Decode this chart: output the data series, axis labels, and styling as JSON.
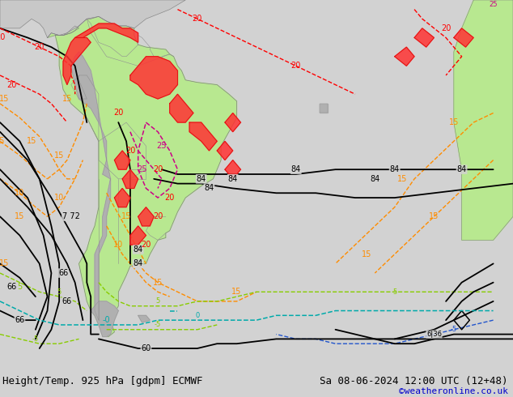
{
  "title_left": "Height/Temp. 925 hPa [gdpm] ECMWF",
  "title_right": "Sa 08-06-2024 12:00 UTC (12+48)",
  "credit": "©weatheronline.co.uk",
  "bg_color": "#d2d2d2",
  "ocean_color": "#d2d2d2",
  "land_color": "#b8e890",
  "gray_land_color": "#b0b0b0",
  "bottom_bg": "#e0e0e0",
  "title_fontsize": 9,
  "credit_fontsize": 8,
  "credit_color": "#0000cc",
  "figsize": [
    6.34,
    4.9
  ],
  "dpi": 100,
  "lon_min": -95,
  "lon_max": 35,
  "lat_min": -62,
  "lat_max": 16
}
